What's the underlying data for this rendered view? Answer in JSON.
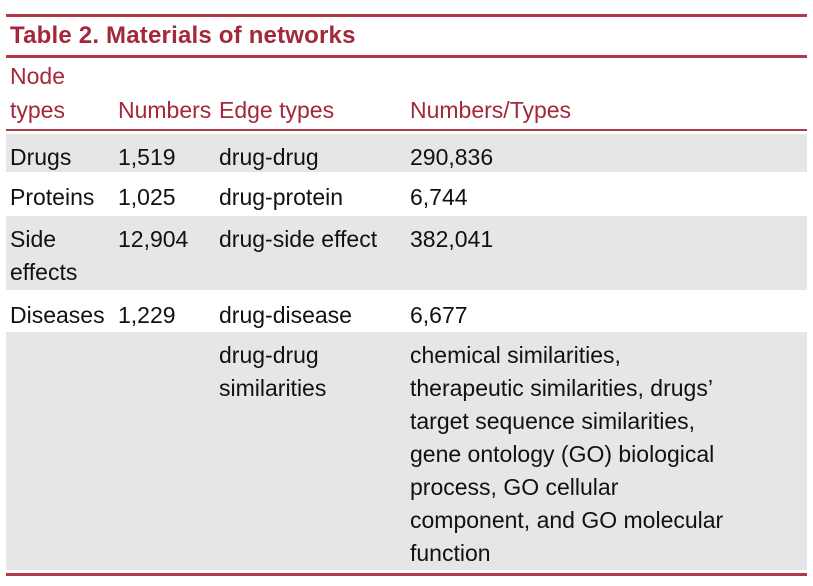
{
  "title": "Table 2.  Materials of networks",
  "colors": {
    "accent": "#a3283c",
    "rule": "#b23a48",
    "shade": "#e6e6e6"
  },
  "headers": {
    "node_types_line1": "Node",
    "node_types_line2": "types",
    "numbers": "Numbers",
    "edge_types": "Edge types",
    "numbers_types": "Numbers/Types"
  },
  "rows": [
    {
      "node_type": [
        "Drugs"
      ],
      "number": "1,519",
      "edge_type": [
        "drug-drug"
      ],
      "edge_value": [
        "290,836"
      ]
    },
    {
      "node_type": [
        "Proteins"
      ],
      "number": "1,025",
      "edge_type": [
        "drug-protein"
      ],
      "edge_value": [
        "6,744"
      ]
    },
    {
      "node_type": [
        "Side",
        "effects"
      ],
      "number": "12,904",
      "edge_type": [
        "drug-side effect"
      ],
      "edge_value": [
        "382,041"
      ]
    },
    {
      "node_type": [
        "Diseases"
      ],
      "number": "1,229",
      "edge_type": [
        "drug-disease"
      ],
      "edge_value": [
        "6,677"
      ]
    },
    {
      "node_type": [],
      "number": "",
      "edge_type": [
        "drug-drug",
        "similarities"
      ],
      "edge_value": [
        "chemical similarities,",
        "therapeutic similarities, drugs’",
        "target sequence similarities,",
        "gene ontology (GO) biological",
        "process, GO cellular",
        "component, and GO molecular",
        "function"
      ]
    }
  ]
}
